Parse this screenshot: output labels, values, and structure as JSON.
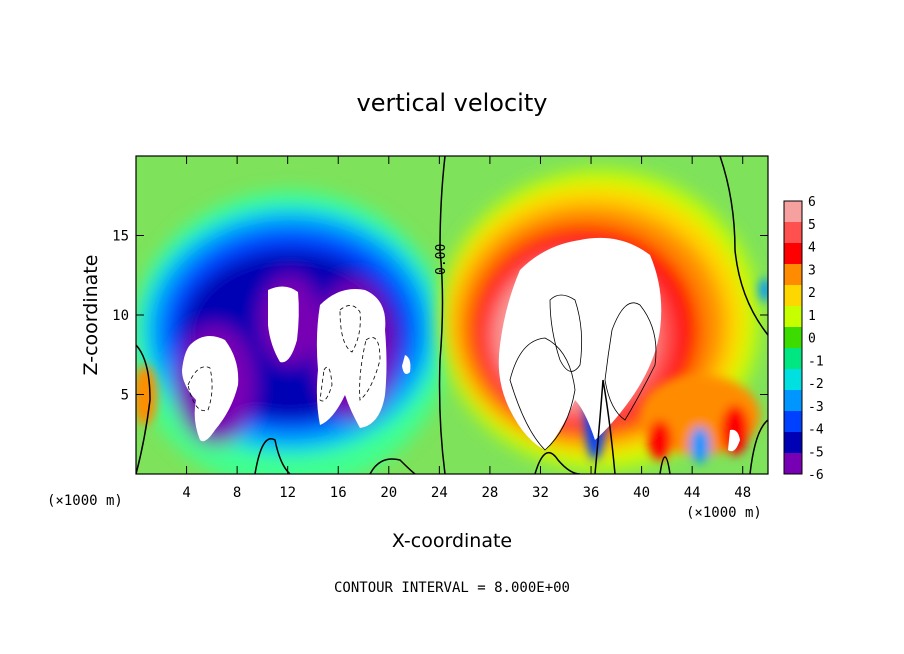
{
  "chart_data": {
    "type": "heatmap",
    "title": "vertical velocity",
    "xlabel": "X-coordinate",
    "ylabel": "Z-coordinate",
    "x_unit": "(×1000 m)",
    "z_unit": "(×1000 m)",
    "xlim": [
      0,
      50
    ],
    "zlim": [
      0,
      20
    ],
    "x_ticks": [
      4,
      8,
      12,
      16,
      20,
      24,
      28,
      32,
      36,
      40,
      44,
      48
    ],
    "z_ticks": [
      5,
      10,
      15
    ],
    "contour_label": "0.00",
    "footer": "CONTOUR INTERVAL = 8.000E+00",
    "colorbar": {
      "labels": [
        "6",
        "5",
        "4",
        "3",
        "2",
        "1",
        "0",
        "-1",
        "-2",
        "-3",
        "-4",
        "-5",
        "-6"
      ],
      "colors": [
        "#f7a0a0",
        "#ff5050",
        "#ff0000",
        "#ff8c00",
        "#ffd700",
        "#c8ff00",
        "#3cdc00",
        "#00e680",
        "#00e0e0",
        "#0096ff",
        "#0040ff",
        "#0000b4",
        "#7800b4"
      ]
    },
    "regions": [
      {
        "sign": "negative",
        "x_range": [
          0.5,
          24
        ],
        "z_range": [
          0.5,
          17
        ],
        "min": -6
      },
      {
        "sign": "positive",
        "x_range": [
          25,
          44
        ],
        "z_range": [
          0.5,
          18
        ],
        "max": 6
      }
    ]
  }
}
